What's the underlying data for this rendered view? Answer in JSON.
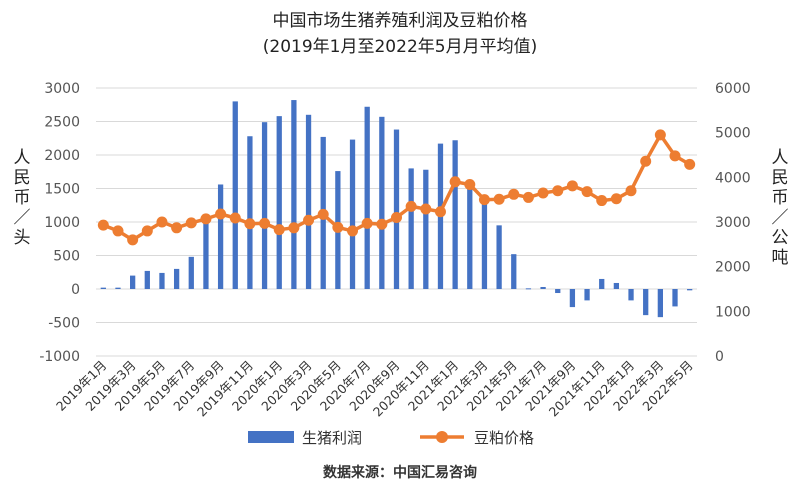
{
  "chart_data": {
    "type": "bar+line",
    "title": "中国市场生猪养殖利润及豆粕价格",
    "subtitle": "(2019年1月至2022年5月月平均值)",
    "ylabel_left": "人民币／头",
    "ylabel_right": "人民币／公吨",
    "ylim_left": [
      -1000,
      3000
    ],
    "ylim_right": [
      0,
      6000
    ],
    "yticks_left": [
      -1000,
      -500,
      0,
      500,
      1000,
      1500,
      2000,
      2500,
      3000
    ],
    "yticks_right": [
      0,
      1000,
      2000,
      3000,
      4000,
      5000,
      6000
    ],
    "grid": true,
    "legend_position": "bottom",
    "categories": [
      "2019年1月",
      "2019年2月",
      "2019年3月",
      "2019年4月",
      "2019年5月",
      "2019年6月",
      "2019年7月",
      "2019年8月",
      "2019年9月",
      "2019年10月",
      "2019年11月",
      "2019年12月",
      "2020年1月",
      "2020年2月",
      "2020年3月",
      "2020年4月",
      "2020年5月",
      "2020年6月",
      "2020年7月",
      "2020年8月",
      "2020年9月",
      "2020年10月",
      "2020年11月",
      "2020年12月",
      "2021年1月",
      "2021年2月",
      "2021年3月",
      "2021年4月",
      "2021年5月",
      "2021年6月",
      "2021年7月",
      "2021年8月",
      "2021年9月",
      "2021年10月",
      "2021年11月",
      "2021年12月",
      "2022年1月",
      "2022年2月",
      "2022年3月",
      "2022年4月",
      "2022年5月"
    ],
    "tick_labels": [
      "2019年1月",
      "2019年3月",
      "2019年5月",
      "2019年7月",
      "2019年9月",
      "2019年11月",
      "2020年1月",
      "2020年3月",
      "2020年5月",
      "2020年7月",
      "2020年9月",
      "2020年11月",
      "2021年1月",
      "2021年3月",
      "2021年5月",
      "2021年7月",
      "2021年9月",
      "2021年11月",
      "2022年1月",
      "2022年3月",
      "2022年5月"
    ],
    "series": [
      {
        "name": "生猪利润",
        "type": "bar",
        "axis": "left",
        "color": "#4472C4",
        "values": [
          20,
          20,
          200,
          270,
          240,
          300,
          480,
          1000,
          1560,
          2800,
          2280,
          2490,
          2580,
          2820,
          2600,
          2270,
          1760,
          2230,
          2720,
          2570,
          2380,
          1800,
          1780,
          2170,
          2220,
          1500,
          1320,
          950,
          520,
          10,
          30,
          -60,
          -270,
          -170,
          150,
          90,
          -170,
          -390,
          -420,
          -260,
          -20
        ]
      },
      {
        "name": "豆粕价格",
        "type": "line",
        "axis": "right",
        "color": "#ED7D31",
        "values": [
          2930,
          2800,
          2600,
          2800,
          3000,
          2870,
          2980,
          3070,
          3180,
          3090,
          2960,
          2970,
          2830,
          2870,
          3040,
          3170,
          2880,
          2800,
          2970,
          2950,
          3100,
          3350,
          3290,
          3230,
          3900,
          3840,
          3500,
          3510,
          3620,
          3550,
          3650,
          3700,
          3810,
          3680,
          3480,
          3520,
          3700,
          4360,
          4950,
          4480,
          4290
        ]
      }
    ]
  },
  "source": "数据来源：中国汇易咨询"
}
